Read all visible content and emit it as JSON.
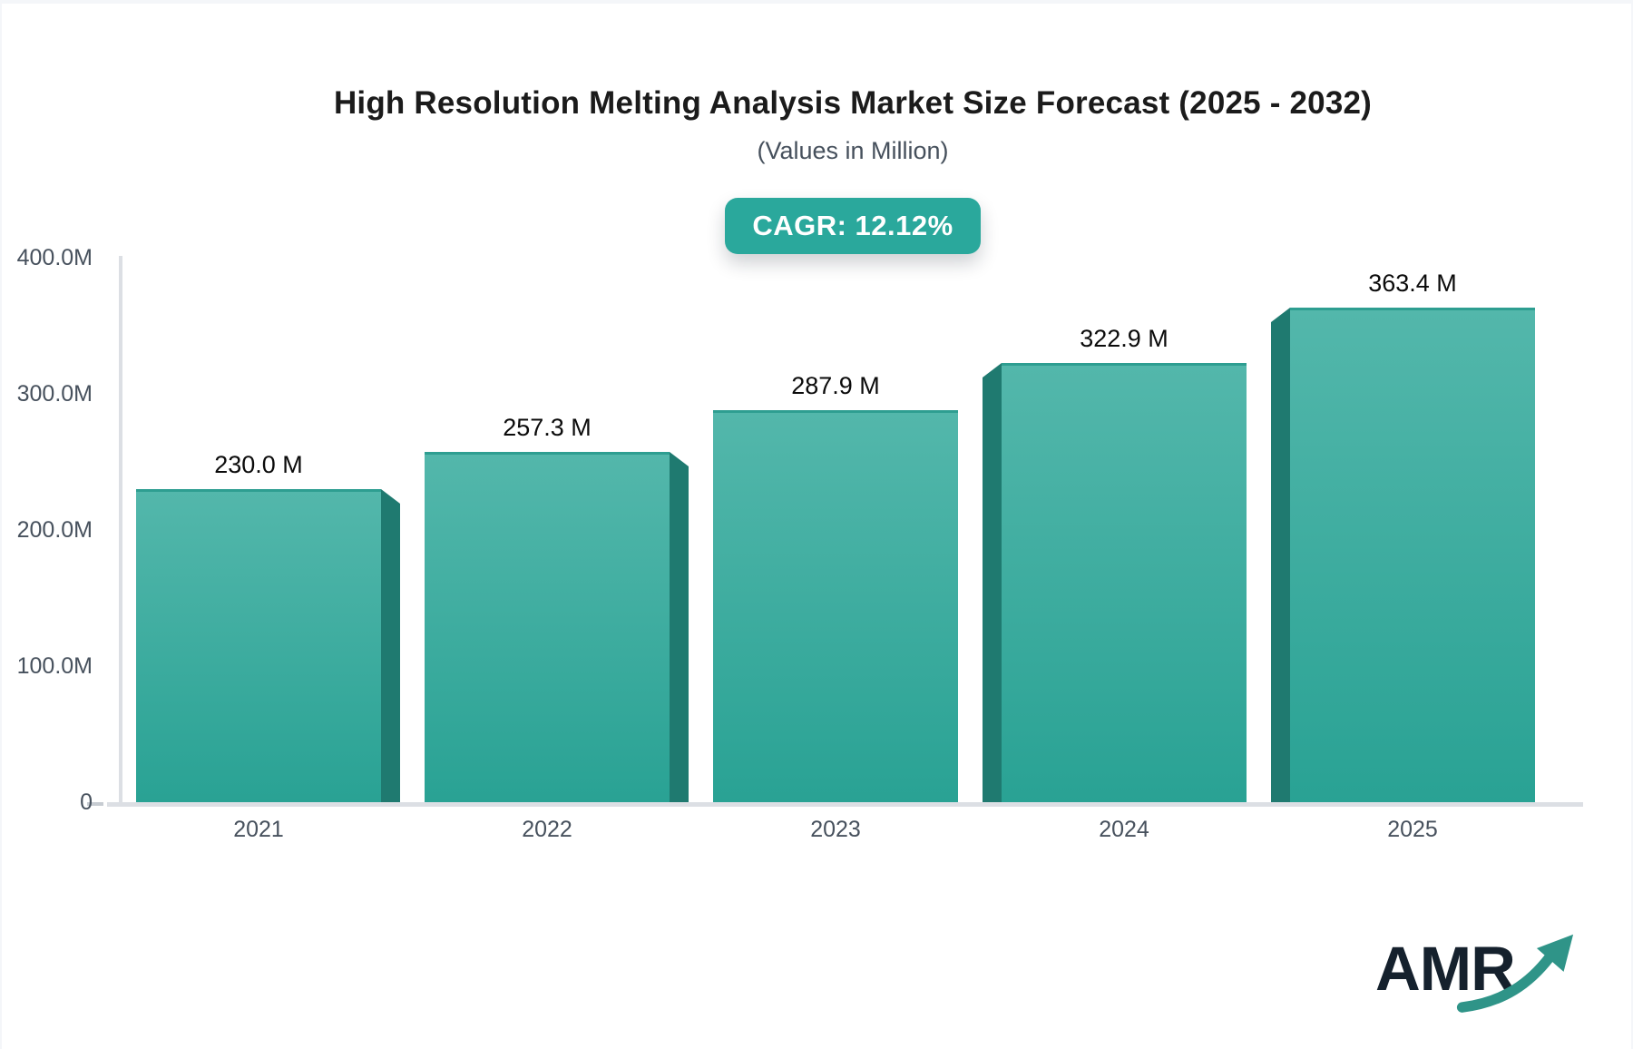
{
  "header": {
    "title": "High Resolution Melting Analysis Market Size Forecast (2025 - 2032)",
    "subtitle": "(Values in Million)",
    "cagr_badge": "CAGR: 12.12%"
  },
  "chart_data": {
    "type": "bar",
    "title": "High Resolution Melting Analysis Market Size Forecast (2025 - 2032)",
    "subtitle": "(Values in Million)",
    "unit": "Million",
    "cagr_percent": 12.12,
    "categories": [
      "2021",
      "2022",
      "2023",
      "2024",
      "2025"
    ],
    "values": [
      230.0,
      257.3,
      287.9,
      322.9,
      363.4
    ],
    "value_labels": [
      "230.0 M",
      "257.3 M",
      "287.9 M",
      "322.9 M",
      "363.4 M"
    ],
    "xlabel": "",
    "ylabel": "",
    "ylim": [
      0,
      400
    ],
    "y_ticks": [
      {
        "value": 400,
        "label": "400.0M"
      },
      {
        "value": 300,
        "label": "300.0M"
      },
      {
        "value": 200,
        "label": "200.0M"
      },
      {
        "value": 100,
        "label": "100.0M"
      },
      {
        "value": 0,
        "label": "0"
      }
    ],
    "grid": false,
    "legend": "none",
    "bar_3d_shadow_side": [
      "right",
      "right",
      "none",
      "left",
      "left"
    ]
  },
  "colors": {
    "badge_bg": "#2aa89c",
    "bar_face_top": "#53b7ab",
    "bar_face_bottom": "#29a294",
    "bar_top_edge": "#2e9e91",
    "bar_side": "#1f7a70",
    "axis_line": "#dcdfe4",
    "title_text": "#1b1b1b",
    "subtitle_text": "#46505c",
    "axis_text": "#47515d",
    "value_text": "#0b0b0b",
    "logo_text": "#15212d",
    "logo_arrow": "#2f9488"
  },
  "logo": {
    "text": "AMR"
  }
}
